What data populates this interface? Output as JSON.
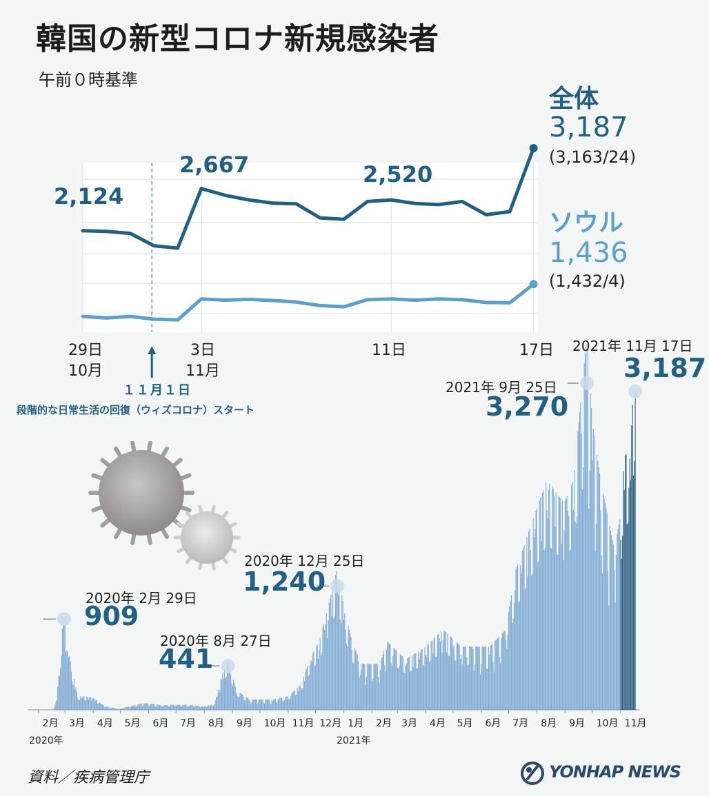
{
  "title": "韓国の新型コロナ新規感染者",
  "subtitle": "午前０時基準",
  "source": "資料／疾病管理庁",
  "logo": "YONHAP NEWS",
  "colors": {
    "total": "#215f85",
    "seoul": "#5aa0cc",
    "bar": "#7fabd4",
    "bar_recent": "#2e5f85",
    "panel": "#ffffff"
  },
  "chart_data": [
    {
      "type": "line",
      "x": [
        "10-29",
        "10-30",
        "10-31",
        "11-01",
        "11-02",
        "11-03",
        "11-04",
        "11-05",
        "11-06",
        "11-07",
        "11-08",
        "11-09",
        "11-10",
        "11-11",
        "11-12",
        "11-13",
        "11-14",
        "11-15",
        "11-16",
        "11-17"
      ],
      "tick_labels": {
        "d29": "29日",
        "m10": "10月",
        "d3": "3日",
        "m11": "11月",
        "d11": "11日",
        "d17": "17日"
      },
      "series": [
        {
          "name": "全体",
          "values": [
            2124,
            2115,
            2090,
            1930,
            1900,
            2667,
            2580,
            2520,
            2480,
            2470,
            2290,
            2270,
            2500,
            2520,
            2475,
            2460,
            2500,
            2330,
            2370,
            3187
          ],
          "final_value": "3,187",
          "final_detail": "(3,163/24)"
        },
        {
          "name": "ソウル",
          "values": [
            1020,
            1000,
            1020,
            985,
            975,
            1245,
            1230,
            1240,
            1225,
            1205,
            1160,
            1145,
            1235,
            1245,
            1230,
            1245,
            1235,
            1200,
            1195,
            1436
          ],
          "final_value": "1,436",
          "final_detail": "(1,432/4)"
        }
      ],
      "labels": {
        "first": "2,124",
        "peak_nov3": "2,667",
        "nov11": "2,520"
      },
      "ylim": [
        800,
        3400
      ],
      "annotation": {
        "date": "１１月１日",
        "text": "段階的な日常生活の回復（ウィズコロナ）スタート"
      }
    },
    {
      "type": "bar",
      "x_range": [
        "2020-01-20",
        "2021-11-17"
      ],
      "months": [
        "2月",
        "3月",
        "4月",
        "5月",
        "6月",
        "7月",
        "8月",
        "9月",
        "10月",
        "11月",
        "12月",
        "1月",
        "2月",
        "3月",
        "4月",
        "5月",
        "6月",
        "7月",
        "8月",
        "9月",
        "10月",
        "11月"
      ],
      "year_labels": [
        "2020年",
        "2021年"
      ],
      "ylim": [
        0,
        3400
      ],
      "keypoints": [
        [
          "2020-01-20",
          1
        ],
        [
          "2020-02-17",
          1
        ],
        [
          "2020-02-21",
          100
        ],
        [
          "2020-02-29",
          909
        ],
        [
          "2020-03-03",
          600
        ],
        [
          "2020-03-08",
          380
        ],
        [
          "2020-03-15",
          120
        ],
        [
          "2020-03-31",
          110
        ],
        [
          "2020-04-15",
          30
        ],
        [
          "2020-04-30",
          8
        ],
        [
          "2020-05-10",
          30
        ],
        [
          "2020-05-28",
          60
        ],
        [
          "2020-06-15",
          40
        ],
        [
          "2020-06-30",
          45
        ],
        [
          "2020-07-15",
          45
        ],
        [
          "2020-07-31",
          30
        ],
        [
          "2020-08-12",
          50
        ],
        [
          "2020-08-20",
          300
        ],
        [
          "2020-08-27",
          441
        ],
        [
          "2020-09-05",
          170
        ],
        [
          "2020-09-20",
          90
        ],
        [
          "2020-10-15",
          90
        ],
        [
          "2020-11-01",
          120
        ],
        [
          "2020-11-15",
          220
        ],
        [
          "2020-11-25",
          450
        ],
        [
          "2020-12-05",
          600
        ],
        [
          "2020-12-15",
          900
        ],
        [
          "2020-12-25",
          1240
        ],
        [
          "2021-01-01",
          900
        ],
        [
          "2021-01-10",
          600
        ],
        [
          "2021-01-20",
          400
        ],
        [
          "2021-02-10",
          400
        ],
        [
          "2021-02-17",
          600
        ],
        [
          "2021-03-10",
          440
        ],
        [
          "2021-04-01",
          550
        ],
        [
          "2021-04-20",
          700
        ],
        [
          "2021-05-10",
          550
        ],
        [
          "2021-06-10",
          550
        ],
        [
          "2021-06-28",
          700
        ],
        [
          "2021-07-08",
          1200
        ],
        [
          "2021-07-25",
          1600
        ],
        [
          "2021-08-12",
          2000
        ],
        [
          "2021-08-31",
          1800
        ],
        [
          "2021-09-10",
          2000
        ],
        [
          "2021-09-25",
          3270
        ],
        [
          "2021-10-01",
          2500
        ],
        [
          "2021-10-10",
          2000
        ],
        [
          "2021-10-25",
          1400
        ],
        [
          "2021-11-01",
          1700
        ],
        [
          "2021-11-05",
          2200
        ],
        [
          "2021-11-12",
          2300
        ],
        [
          "2021-11-17",
          3187
        ]
      ],
      "annotations": [
        {
          "date": "2020年 2月 29日",
          "value": "909"
        },
        {
          "date": "2020年 8月 27日",
          "value": "441"
        },
        {
          "date": "2020年 12月 25日",
          "value": "1,240"
        },
        {
          "date": "2021年 9月 25日",
          "value": "3,270"
        },
        {
          "date": "2021年 11月 17日",
          "value": "3,187"
        }
      ]
    }
  ]
}
